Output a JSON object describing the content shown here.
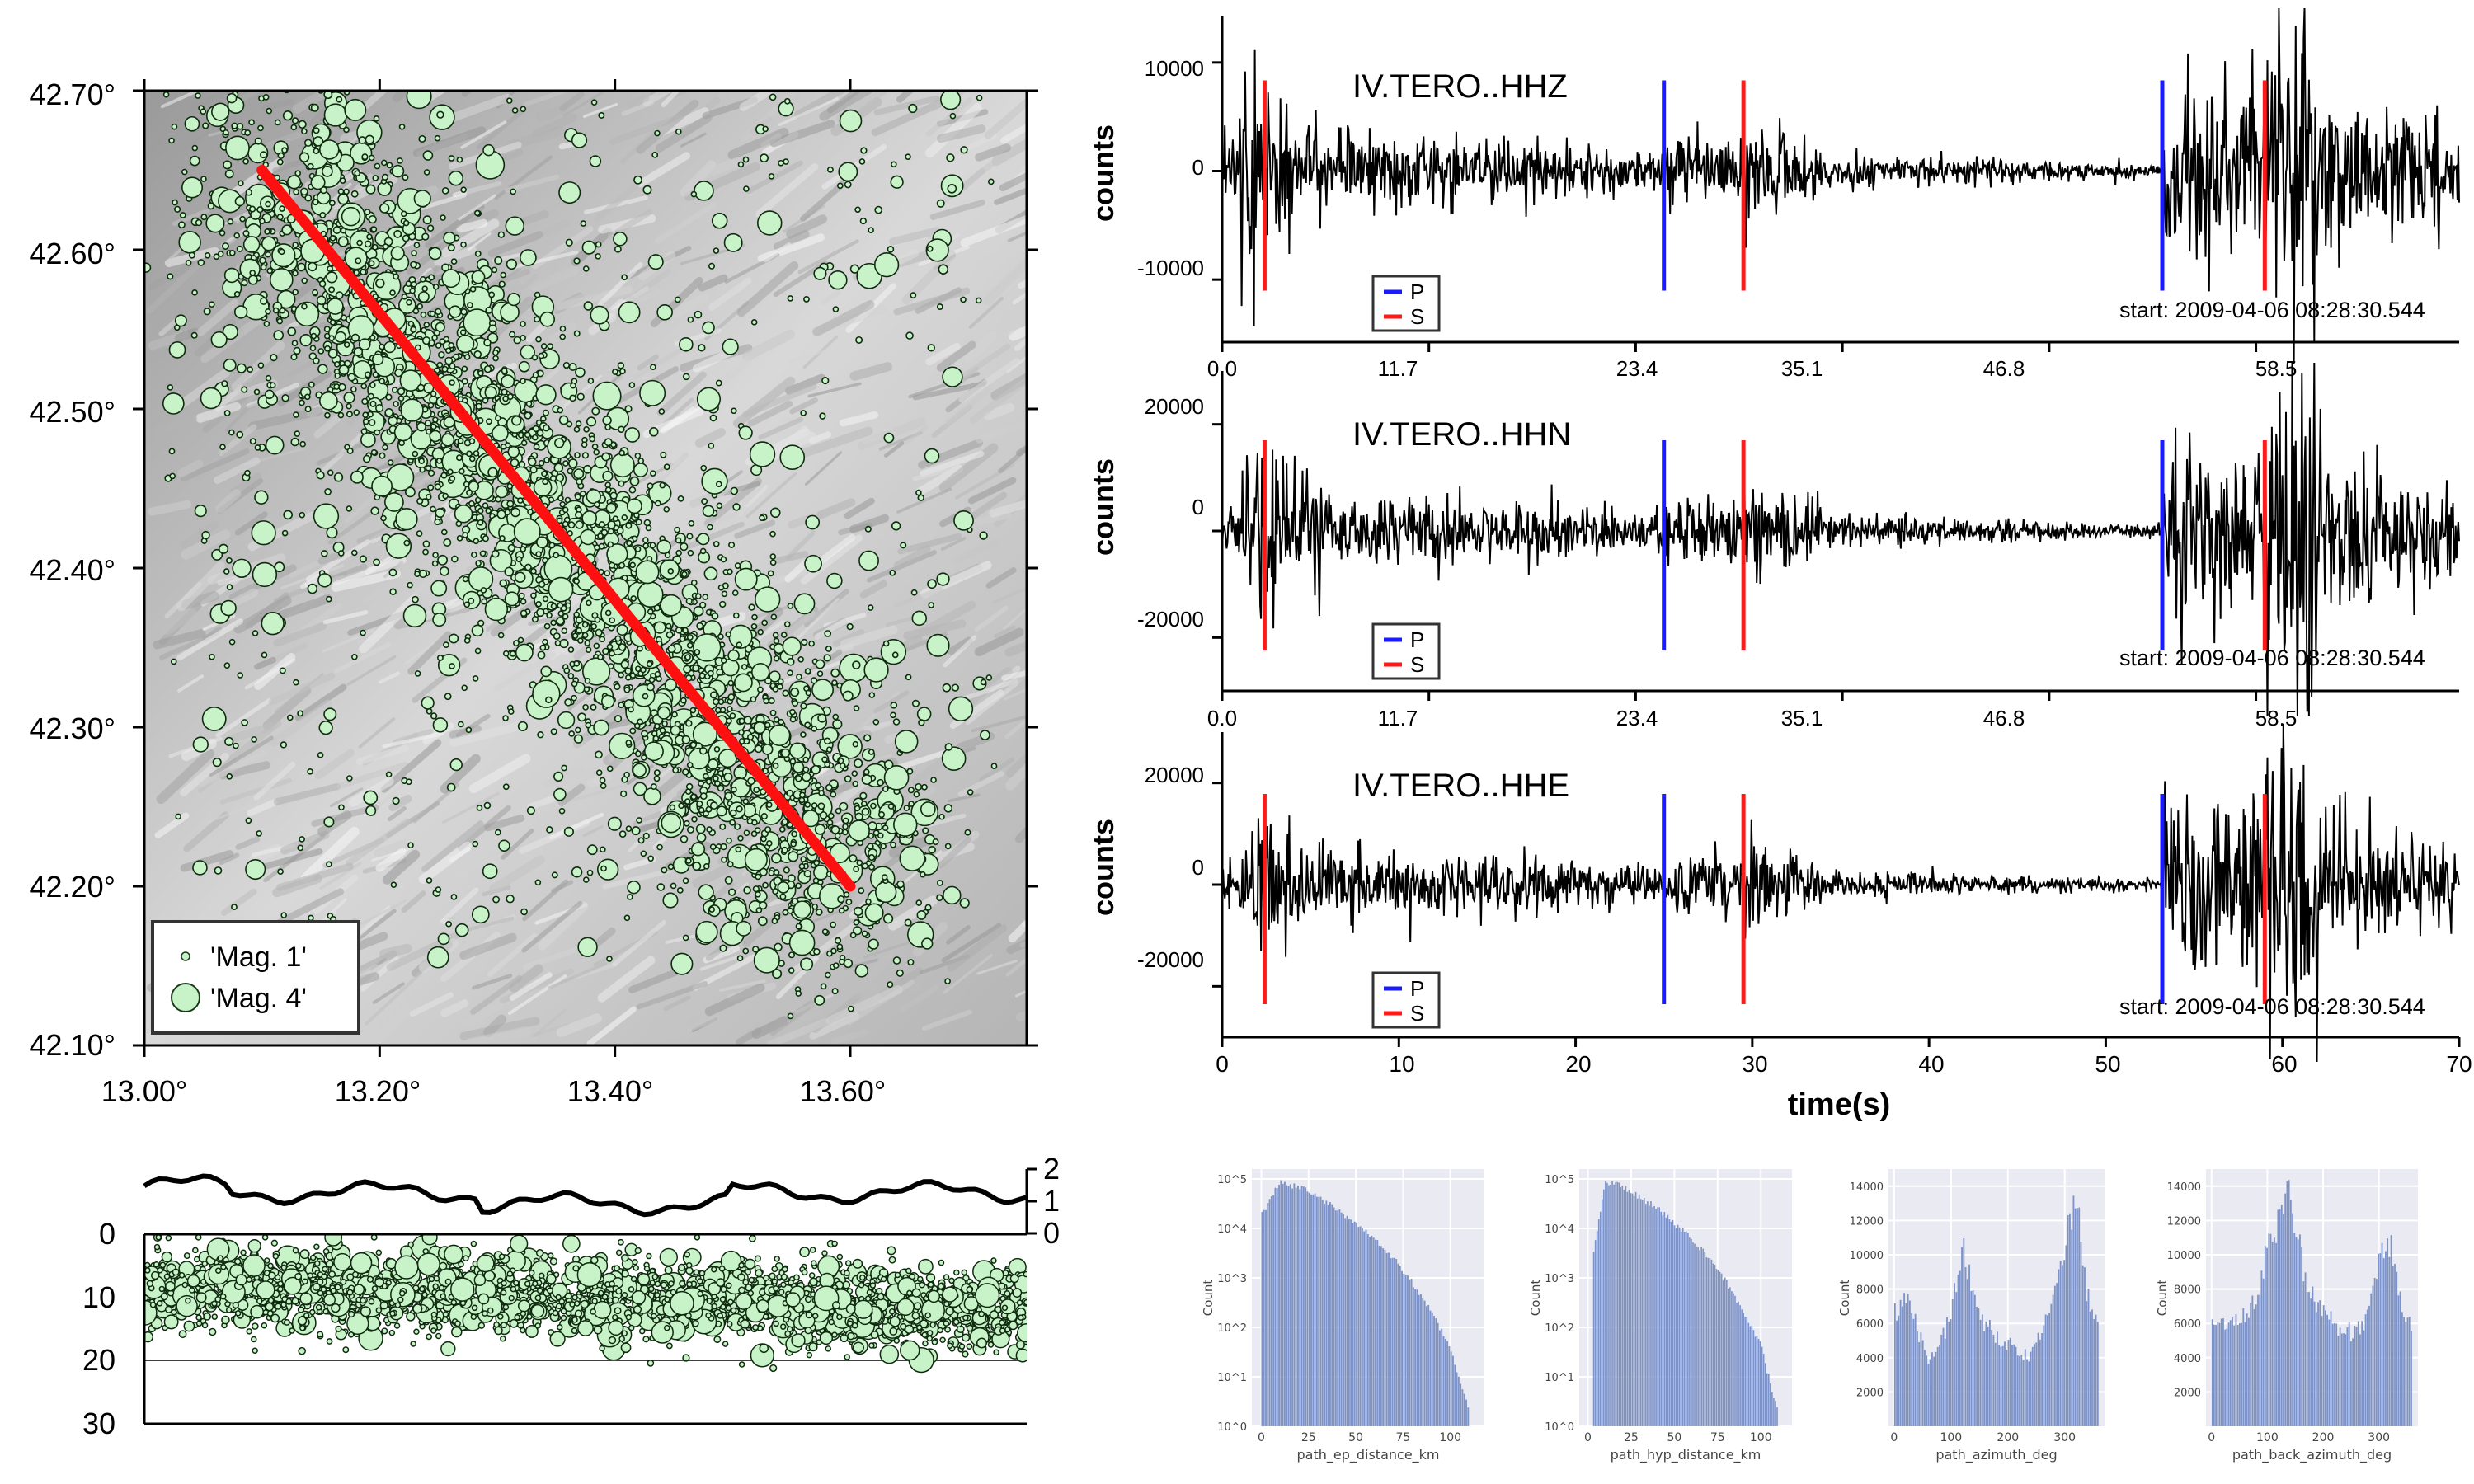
{
  "map": {
    "lat_ticks": [
      "42.70°",
      "42.60°",
      "42.50°",
      "42.40°",
      "42.30°",
      "42.20°",
      "42.10°"
    ],
    "lon_ticks": [
      "13.00°",
      "13.20°",
      "13.40°",
      "13.60°"
    ],
    "legend": [
      "'Mag. 1'",
      "'Mag. 4'"
    ],
    "profile": {
      "from": [
        13.1,
        42.65
      ],
      "to": [
        13.6,
        42.2
      ]
    },
    "point_color": "#c8f2c8",
    "line_color": "#ff1010"
  },
  "section": {
    "depth_ticks": [
      "0",
      "10",
      "20",
      "30"
    ],
    "top_ticks": [
      "2",
      "1",
      "0"
    ]
  },
  "waveforms": {
    "panels": [
      {
        "channel": "IV.TERO..HHZ",
        "y_ticks": [
          "10000",
          "0",
          "-10000"
        ],
        "ylabel": "counts",
        "x_ticks": [
          "0.0",
          "11.7",
          "23.4",
          "35.1",
          "46.8",
          "58.5"
        ],
        "start": "start: 2009-04-06 08:28:30.544",
        "p_picks": [
          25.0,
          53.2
        ],
        "s_picks": [
          2.4,
          29.5,
          59.0
        ]
      },
      {
        "channel": "IV.TERO..HHN",
        "y_ticks": [
          "20000",
          "0",
          "-20000"
        ],
        "ylabel": "counts",
        "x_ticks": [
          "0.0",
          "11.7",
          "23.4",
          "35.1",
          "46.8",
          "58.5"
        ],
        "start": "start: 2009-04-06 08:28:30.544",
        "p_picks": [
          25.0,
          53.2
        ],
        "s_picks": [
          2.4,
          29.5,
          59.0
        ]
      },
      {
        "channel": "IV.TERO..HHE",
        "y_ticks": [
          "20000",
          "0",
          "-20000"
        ],
        "ylabel": "counts",
        "x_ticks": [
          "0",
          "10",
          "20",
          "30",
          "40",
          "50",
          "60",
          "70"
        ],
        "start": "start: 2009-04-06 08:28:30.544",
        "p_picks": [
          25.0,
          53.2
        ],
        "s_picks": [
          2.4,
          29.5,
          59.0
        ]
      }
    ],
    "legend": [
      "P",
      "S"
    ],
    "xlabel": "time(s)",
    "p_color": "#1a1aff",
    "s_color": "#ff1a1a"
  },
  "chart_data": [
    {
      "type": "histogram",
      "xlabel": "path_ep_distance_km",
      "ylabel": "Count",
      "yscale": "log",
      "x_ticks": [
        "0",
        "25",
        "50",
        "75",
        "100"
      ],
      "y_ticks": [
        "10^5",
        "10^4",
        "10^3",
        "10^2",
        "10^1",
        "10^0"
      ],
      "xlim": [
        -5,
        118
      ],
      "ylim_log10": [
        0,
        5.2
      ],
      "x": [
        0,
        10,
        20,
        30,
        40,
        50,
        60,
        70,
        80,
        90,
        100,
        105,
        110
      ],
      "values": [
        18000,
        85000,
        70000,
        42000,
        25000,
        12000,
        6000,
        2500,
        800,
        200,
        40,
        8,
        2
      ]
    },
    {
      "type": "histogram",
      "xlabel": "path_hyp_distance_km",
      "ylabel": "Count",
      "yscale": "log",
      "x_ticks": [
        "0",
        "25",
        "50",
        "75",
        "100"
      ],
      "y_ticks": [
        "10^5",
        "10^4",
        "10^3",
        "10^2",
        "10^1",
        "10^0"
      ],
      "xlim": [
        -5,
        118
      ],
      "ylim_log10": [
        0,
        5.2
      ],
      "x": [
        3,
        10,
        20,
        30,
        40,
        50,
        60,
        70,
        80,
        90,
        100,
        105,
        110
      ],
      "values": [
        3000,
        90000,
        72000,
        43000,
        26000,
        12500,
        6200,
        2600,
        850,
        210,
        45,
        9,
        2
      ]
    },
    {
      "type": "histogram",
      "xlabel": "path_azimuth_deg",
      "ylabel": "Count",
      "x_ticks": [
        "0",
        "100",
        "200",
        "300"
      ],
      "y_ticks": [
        "14000",
        "12000",
        "10000",
        "8000",
        "6000",
        "4000",
        "2000"
      ],
      "xlim": [
        -10,
        370
      ],
      "ylim": [
        0,
        15000
      ],
      "x": [
        0,
        20,
        40,
        60,
        80,
        100,
        120,
        140,
        160,
        180,
        200,
        220,
        240,
        260,
        280,
        300,
        320,
        340,
        360
      ],
      "values": [
        6500,
        7500,
        5800,
        4000,
        4800,
        6500,
        10500,
        7500,
        6000,
        5200,
        4800,
        4300,
        4000,
        5500,
        7500,
        10000,
        14000,
        7500,
        6000
      ]
    },
    {
      "type": "histogram",
      "xlabel": "path_back_azimuth_deg",
      "ylabel": "Count",
      "x_ticks": [
        "0",
        "100",
        "200",
        "300"
      ],
      "y_ticks": [
        "14000",
        "12000",
        "10000",
        "8000",
        "6000",
        "4000",
        "2000"
      ],
      "xlim": [
        -10,
        370
      ],
      "ylim": [
        0,
        15000
      ],
      "x": [
        0,
        20,
        40,
        60,
        80,
        100,
        120,
        140,
        160,
        180,
        200,
        220,
        240,
        260,
        280,
        300,
        320,
        340,
        360
      ],
      "values": [
        6000,
        5800,
        6000,
        6500,
        7500,
        10000,
        12000,
        14000,
        10000,
        7500,
        6500,
        6000,
        5600,
        5400,
        6500,
        9500,
        11000,
        7000,
        6000
      ]
    }
  ]
}
